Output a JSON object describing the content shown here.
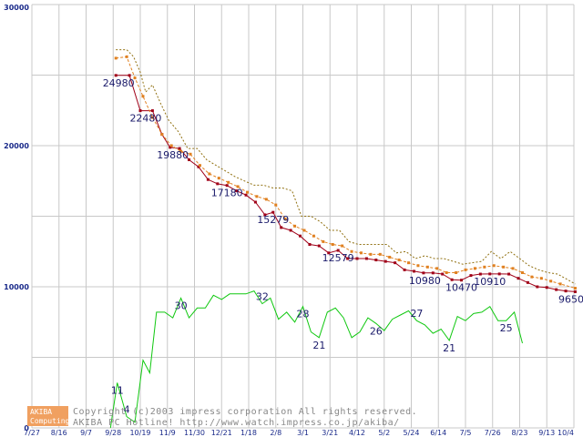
{
  "chart_data": {
    "type": "line",
    "title": "",
    "xlabel": "",
    "ylabel": "",
    "ylim": [
      0,
      30000
    ],
    "grid": true,
    "y_ticks": [
      "0",
      "10000",
      "20000",
      "30000"
    ],
    "x_tick_labels": [
      "7/27",
      "8/16",
      "9/7",
      "9/28",
      "10/19",
      "11/9",
      "11/30",
      "12/21",
      "1/18",
      "2/8",
      "3/1",
      "3/21",
      "4/12",
      "5/2",
      "5/24",
      "6/14",
      "7/5",
      "7/26",
      "8/23",
      "9/13",
      "10/4"
    ],
    "series": [
      {
        "name": "price-min",
        "color": "#a00018",
        "style": "solid-markers",
        "points": [
          [
            3.1,
            24980
          ],
          [
            3.6,
            24980
          ],
          [
            4.0,
            22480
          ],
          [
            4.45,
            22480
          ],
          [
            4.8,
            20800
          ],
          [
            5.1,
            19880
          ],
          [
            5.45,
            19800
          ],
          [
            5.8,
            19000
          ],
          [
            6.15,
            18500
          ],
          [
            6.5,
            17600
          ],
          [
            6.85,
            17300
          ],
          [
            7.2,
            17180
          ],
          [
            7.55,
            16800
          ],
          [
            7.9,
            16500
          ],
          [
            8.25,
            16000
          ],
          [
            8.6,
            15100
          ],
          [
            8.9,
            15279
          ],
          [
            9.2,
            14200
          ],
          [
            9.55,
            14000
          ],
          [
            9.9,
            13600
          ],
          [
            10.25,
            13000
          ],
          [
            10.6,
            12900
          ],
          [
            10.95,
            12400
          ],
          [
            11.3,
            12579
          ],
          [
            11.65,
            12000
          ],
          [
            12.0,
            12000
          ],
          [
            12.35,
            12000
          ],
          [
            12.7,
            11900
          ],
          [
            13.05,
            11800
          ],
          [
            13.4,
            11700
          ],
          [
            13.75,
            11200
          ],
          [
            14.1,
            11100
          ],
          [
            14.45,
            10980
          ],
          [
            14.8,
            10980
          ],
          [
            15.15,
            10900
          ],
          [
            15.5,
            10500
          ],
          [
            15.85,
            10470
          ],
          [
            16.2,
            10800
          ],
          [
            16.55,
            10900
          ],
          [
            16.9,
            10910
          ],
          [
            17.25,
            10910
          ],
          [
            17.6,
            10900
          ],
          [
            17.95,
            10600
          ],
          [
            18.3,
            10300
          ],
          [
            18.65,
            10000
          ],
          [
            19.0,
            9950
          ],
          [
            19.35,
            9800
          ],
          [
            19.7,
            9700
          ],
          [
            20.05,
            9650
          ]
        ]
      },
      {
        "name": "price-avg",
        "color": "#e08020",
        "style": "dashed-markers",
        "points": [
          [
            3.1,
            26200
          ],
          [
            3.5,
            26300
          ],
          [
            3.8,
            24800
          ],
          [
            4.1,
            23500
          ],
          [
            4.45,
            22000
          ],
          [
            4.8,
            20800
          ],
          [
            5.15,
            20000
          ],
          [
            5.5,
            19600
          ],
          [
            5.85,
            19400
          ],
          [
            6.2,
            18600
          ],
          [
            6.55,
            18000
          ],
          [
            6.9,
            17700
          ],
          [
            7.25,
            17400
          ],
          [
            7.6,
            17100
          ],
          [
            7.95,
            16700
          ],
          [
            8.3,
            16400
          ],
          [
            8.65,
            16200
          ],
          [
            9.0,
            15800
          ],
          [
            9.35,
            14800
          ],
          [
            9.7,
            14300
          ],
          [
            10.05,
            14000
          ],
          [
            10.4,
            13600
          ],
          [
            10.75,
            13200
          ],
          [
            11.1,
            13000
          ],
          [
            11.45,
            12900
          ],
          [
            11.8,
            12500
          ],
          [
            12.15,
            12400
          ],
          [
            12.5,
            12300
          ],
          [
            12.85,
            12300
          ],
          [
            13.2,
            12100
          ],
          [
            13.55,
            11900
          ],
          [
            13.9,
            11700
          ],
          [
            14.25,
            11500
          ],
          [
            14.6,
            11400
          ],
          [
            14.95,
            11300
          ],
          [
            15.3,
            11000
          ],
          [
            15.65,
            11000
          ],
          [
            16.0,
            11200
          ],
          [
            16.35,
            11300
          ],
          [
            16.7,
            11400
          ],
          [
            17.05,
            11500
          ],
          [
            17.4,
            11400
          ],
          [
            17.75,
            11300
          ],
          [
            18.1,
            11000
          ],
          [
            18.45,
            10700
          ],
          [
            18.8,
            10600
          ],
          [
            19.15,
            10400
          ],
          [
            19.5,
            10200
          ],
          [
            20.05,
            9900
          ]
        ]
      },
      {
        "name": "price-max",
        "color": "#907010",
        "style": "dotted",
        "points": [
          [
            3.1,
            26800
          ],
          [
            3.5,
            26800
          ],
          [
            3.75,
            26300
          ],
          [
            4.0,
            25200
          ],
          [
            4.2,
            23800
          ],
          [
            4.45,
            24300
          ],
          [
            4.75,
            23000
          ],
          [
            5.05,
            21800
          ],
          [
            5.4,
            21000
          ],
          [
            5.75,
            19800
          ],
          [
            6.1,
            19800
          ],
          [
            6.45,
            19000
          ],
          [
            6.8,
            18600
          ],
          [
            7.15,
            18200
          ],
          [
            7.5,
            17800
          ],
          [
            7.85,
            17500
          ],
          [
            8.2,
            17200
          ],
          [
            8.55,
            17200
          ],
          [
            8.9,
            17000
          ],
          [
            9.25,
            17000
          ],
          [
            9.6,
            16800
          ],
          [
            9.95,
            15000
          ],
          [
            10.3,
            15000
          ],
          [
            10.65,
            14600
          ],
          [
            11.0,
            14000
          ],
          [
            11.35,
            14000
          ],
          [
            11.7,
            13200
          ],
          [
            12.05,
            13000
          ],
          [
            12.4,
            13000
          ],
          [
            12.75,
            13000
          ],
          [
            13.1,
            13000
          ],
          [
            13.45,
            12400
          ],
          [
            13.8,
            12500
          ],
          [
            14.15,
            12000
          ],
          [
            14.5,
            12200
          ],
          [
            14.85,
            12000
          ],
          [
            15.2,
            12000
          ],
          [
            15.55,
            11800
          ],
          [
            15.9,
            11600
          ],
          [
            16.25,
            11700
          ],
          [
            16.6,
            11800
          ],
          [
            16.95,
            12500
          ],
          [
            17.3,
            12000
          ],
          [
            17.65,
            12500
          ],
          [
            18.0,
            12000
          ],
          [
            18.35,
            11500
          ],
          [
            18.7,
            11200
          ],
          [
            19.05,
            11000
          ],
          [
            19.4,
            10900
          ],
          [
            20.05,
            10200
          ]
        ]
      },
      {
        "name": "shop-count",
        "color": "#10c810",
        "style": "solid",
        "points": [
          [
            2.9,
            0
          ],
          [
            3.15,
            3200
          ],
          [
            3.5,
            800
          ],
          [
            3.8,
            400
          ],
          [
            4.1,
            4800
          ],
          [
            4.35,
            3900
          ],
          [
            4.6,
            8200
          ],
          [
            4.9,
            8200
          ],
          [
            5.2,
            7800
          ],
          [
            5.5,
            9200
          ],
          [
            5.8,
            7800
          ],
          [
            6.1,
            8500
          ],
          [
            6.4,
            8500
          ],
          [
            6.7,
            9400
          ],
          [
            7.0,
            9100
          ],
          [
            7.3,
            9500
          ],
          [
            7.6,
            9500
          ],
          [
            7.9,
            9500
          ],
          [
            8.2,
            9700
          ],
          [
            8.5,
            8800
          ],
          [
            8.8,
            9200
          ],
          [
            9.1,
            7700
          ],
          [
            9.4,
            8200
          ],
          [
            9.7,
            7500
          ],
          [
            10.0,
            8600
          ],
          [
            10.3,
            6800
          ],
          [
            10.6,
            6400
          ],
          [
            10.9,
            8200
          ],
          [
            11.2,
            8500
          ],
          [
            11.5,
            7800
          ],
          [
            11.8,
            6400
          ],
          [
            12.1,
            6800
          ],
          [
            12.4,
            7800
          ],
          [
            12.7,
            7400
          ],
          [
            13.0,
            6900
          ],
          [
            13.3,
            7700
          ],
          [
            13.6,
            8000
          ],
          [
            13.9,
            8300
          ],
          [
            14.2,
            7600
          ],
          [
            14.5,
            7300
          ],
          [
            14.8,
            6700
          ],
          [
            15.1,
            7000
          ],
          [
            15.4,
            6200
          ],
          [
            15.7,
            7900
          ],
          [
            16.0,
            7600
          ],
          [
            16.3,
            8100
          ],
          [
            16.6,
            8200
          ],
          [
            16.9,
            8600
          ],
          [
            17.2,
            7600
          ],
          [
            17.5,
            7600
          ],
          [
            17.8,
            8200
          ],
          [
            18.1,
            6000
          ]
        ]
      }
    ],
    "annotations": [
      {
        "text": "24980",
        "x": 3.2,
        "y": 24980,
        "pos": "below"
      },
      {
        "text": "22480",
        "x": 4.2,
        "y": 22480,
        "pos": "below"
      },
      {
        "text": "19880",
        "x": 5.2,
        "y": 19880,
        "pos": "below"
      },
      {
        "text": "17180",
        "x": 7.2,
        "y": 17180,
        "pos": "below"
      },
      {
        "text": "15279",
        "x": 8.9,
        "y": 15279,
        "pos": "below"
      },
      {
        "text": "12579",
        "x": 11.3,
        "y": 12579,
        "pos": "below"
      },
      {
        "text": "10980",
        "x": 14.5,
        "y": 10980,
        "pos": "below"
      },
      {
        "text": "10470",
        "x": 15.85,
        "y": 10470,
        "pos": "below"
      },
      {
        "text": "10910",
        "x": 16.9,
        "y": 10910,
        "pos": "below"
      },
      {
        "text": "9650",
        "x": 19.9,
        "y": 9650,
        "pos": "below"
      },
      {
        "text": "11",
        "x": 3.15,
        "y": 3200,
        "pos": "below"
      },
      {
        "text": "4",
        "x": 3.5,
        "y": 800,
        "pos": "above"
      },
      {
        "text": "30",
        "x": 5.5,
        "y": 9200,
        "pos": "below"
      },
      {
        "text": "32",
        "x": 8.5,
        "y": 8800,
        "pos": "above"
      },
      {
        "text": "28",
        "x": 10.0,
        "y": 8600,
        "pos": "below"
      },
      {
        "text": "21",
        "x": 10.6,
        "y": 6400,
        "pos": "below"
      },
      {
        "text": "26",
        "x": 12.7,
        "y": 7400,
        "pos": "below"
      },
      {
        "text": "27",
        "x": 14.2,
        "y": 7600,
        "pos": "above"
      },
      {
        "text": "21",
        "x": 15.4,
        "y": 6200,
        "pos": "below"
      },
      {
        "text": "25",
        "x": 17.5,
        "y": 7600,
        "pos": "below"
      }
    ]
  },
  "watermark": {
    "logo_line1": "AKIBA",
    "logo_line2": "Computing",
    "copyright": "Copyright (c)2003 impress corporation All rights reserved.",
    "site": "AKIBA PC Hotline!  http://www.watch.impress.co.jp/akiba/"
  },
  "colors": {
    "grid": "#c8c8c8",
    "axis_text": "#1a2a8a",
    "label_text": "#1a1a6a",
    "logo_bg": "#f0a060"
  }
}
